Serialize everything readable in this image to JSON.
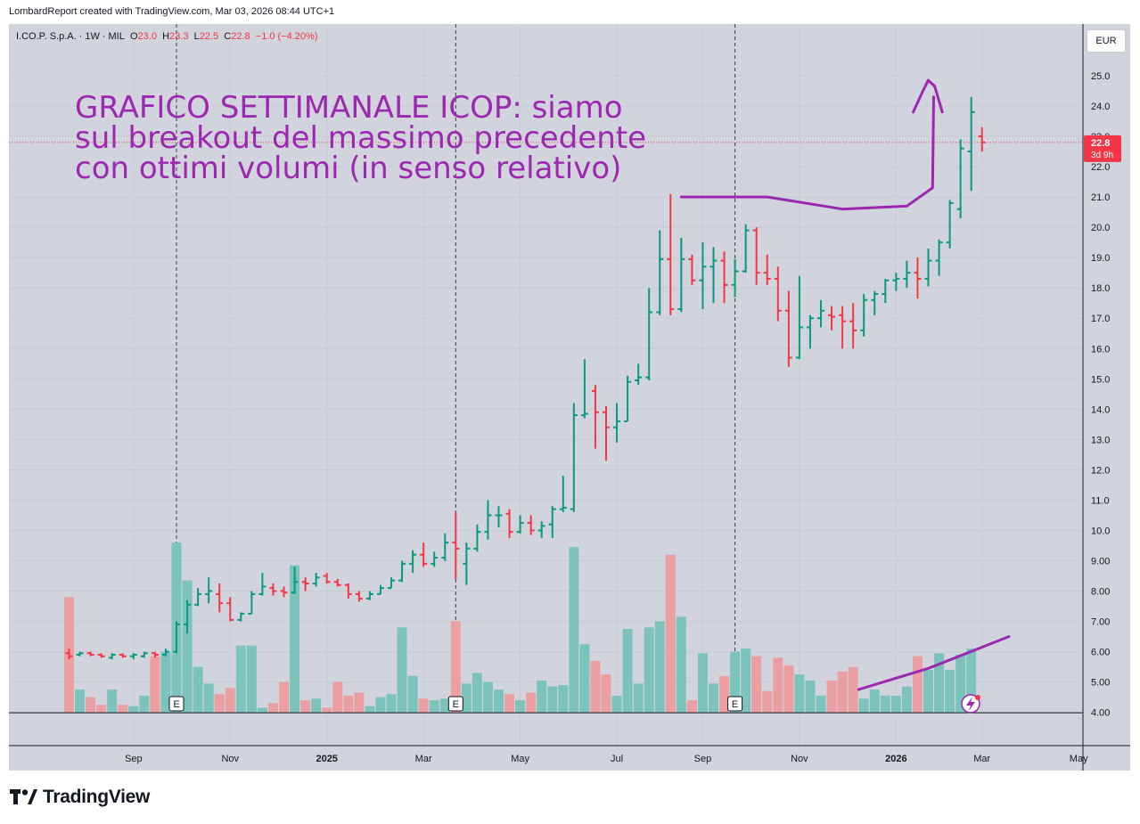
{
  "header": {
    "credit": "LombardReport created with TradingView.com, Mar 03, 2026 08:44 UTC+1"
  },
  "legend": {
    "name": "I.CO.P. S.p.A.",
    "interval": "1W",
    "exchange": "MIL",
    "o_label": "O",
    "o_value": "23.0",
    "h_label": "H",
    "h_value": "23.3",
    "l_label": "L",
    "l_value": "22.5",
    "c_label": "C",
    "c_value": "22.8",
    "change": "−1.0 (−4.20%)"
  },
  "currency": "EUR",
  "annotation": {
    "lines": [
      "GRAFICO SETTIMANALE ICOP: siamo",
      "sul breakout del massimo precedente",
      "con ottimi volumi (in senso relativo)"
    ],
    "color": "#9c27b0"
  },
  "price_label": {
    "value": "22.8",
    "countdown": "3d 9h"
  },
  "earnings_marker": "E",
  "brand": "TradingView",
  "colors": {
    "up": "#089981",
    "down": "#f23645",
    "vol_up": "#7cc3bb",
    "vol_down": "#ec9fa2",
    "pane": "#d1d4dc",
    "drawing": "#9c27b0"
  },
  "chart_data": {
    "type": "ohlc",
    "title": "I.CO.P. S.p.A. · 1W · MIL",
    "ylim": [
      4.0,
      25.4
    ],
    "y_ticks": [
      "25.0",
      "24.0",
      "23.0",
      "22.0",
      "21.0",
      "20.0",
      "19.0",
      "18.0",
      "17.0",
      "16.0",
      "15.0",
      "14.0",
      "13.0",
      "12.0",
      "11.0",
      "10.0",
      "9.00",
      "8.00",
      "7.00",
      "6.00",
      "5.00",
      "4.00"
    ],
    "x_ticks": [
      {
        "label": "Sep",
        "index": 6
      },
      {
        "label": "Nov",
        "index": 15
      },
      {
        "label": "2025",
        "index": 24
      },
      {
        "label": "Mar",
        "index": 33
      },
      {
        "label": "May",
        "index": 42
      },
      {
        "label": "Jul",
        "index": 51
      },
      {
        "label": "Sep",
        "index": 59
      },
      {
        "label": "Nov",
        "index": 68
      },
      {
        "label": "2026",
        "index": 77
      },
      {
        "label": "Mar",
        "index": 85
      },
      {
        "label": "May",
        "index": 94
      }
    ],
    "earnings_weeks": [
      10,
      36,
      62
    ],
    "last_close": 22.8,
    "annotation_lines": [
      {
        "name": "resistance-line",
        "points": [
          [
            57,
            21.0
          ],
          [
            65,
            21.0
          ],
          [
            72,
            20.6
          ],
          [
            78,
            20.7
          ],
          [
            80.4,
            21.3
          ],
          [
            80.5,
            24.3
          ]
        ]
      },
      {
        "name": "breakout-arrow",
        "points": [
          [
            78.6,
            23.8
          ],
          [
            79.5,
            24.5
          ],
          [
            80.0,
            24.85
          ],
          [
            80.6,
            24.65
          ],
          [
            81.3,
            23.8
          ]
        ]
      },
      {
        "name": "volume-trend-line",
        "points": [
          [
            73.5,
            4.75
          ],
          [
            80,
            5.45
          ],
          [
            87.5,
            6.5
          ]
        ]
      }
    ],
    "bars": [
      {
        "o": 5.95,
        "h": 6.1,
        "l": 5.75,
        "c": 5.85,
        "v": 7.8
      },
      {
        "o": 5.9,
        "h": 6.0,
        "l": 5.85,
        "c": 5.95,
        "v": 4.75
      },
      {
        "o": 5.95,
        "h": 6.0,
        "l": 5.85,
        "c": 5.9,
        "v": 4.5
      },
      {
        "o": 5.9,
        "h": 5.95,
        "l": 5.8,
        "c": 5.85,
        "v": 4.25
      },
      {
        "o": 5.8,
        "h": 5.95,
        "l": 5.75,
        "c": 5.9,
        "v": 4.75
      },
      {
        "o": 5.9,
        "h": 5.95,
        "l": 5.8,
        "c": 5.85,
        "v": 4.25
      },
      {
        "o": 5.85,
        "h": 5.95,
        "l": 5.75,
        "c": 5.9,
        "v": 4.2
      },
      {
        "o": 5.85,
        "h": 6.0,
        "l": 5.8,
        "c": 5.95,
        "v": 4.55
      },
      {
        "o": 5.95,
        "h": 6.0,
        "l": 5.8,
        "c": 5.9,
        "v": 5.85
      },
      {
        "o": 5.9,
        "h": 6.1,
        "l": 5.85,
        "c": 6.0,
        "v": 6.0
      },
      {
        "o": 6.0,
        "h": 7.0,
        "l": 5.95,
        "c": 6.9,
        "v": 9.6
      },
      {
        "o": 6.9,
        "h": 7.7,
        "l": 6.6,
        "c": 7.55,
        "v": 8.35
      },
      {
        "o": 7.55,
        "h": 8.1,
        "l": 7.5,
        "c": 7.9,
        "v": 5.5
      },
      {
        "o": 7.9,
        "h": 8.45,
        "l": 7.6,
        "c": 8.0,
        "v": 4.95
      },
      {
        "o": 7.9,
        "h": 8.25,
        "l": 7.3,
        "c": 7.6,
        "v": 4.6
      },
      {
        "o": 7.6,
        "h": 7.8,
        "l": 7.0,
        "c": 7.05,
        "v": 4.8
      },
      {
        "o": 7.05,
        "h": 7.3,
        "l": 7.0,
        "c": 7.25,
        "v": 6.2
      },
      {
        "o": 7.25,
        "h": 8.0,
        "l": 7.25,
        "c": 7.9,
        "v": 6.2
      },
      {
        "o": 7.9,
        "h": 8.6,
        "l": 7.85,
        "c": 8.15,
        "v": 4.15
      },
      {
        "o": 8.1,
        "h": 8.25,
        "l": 7.85,
        "c": 8.0,
        "v": 4.3
      },
      {
        "o": 8.0,
        "h": 8.15,
        "l": 7.8,
        "c": 7.95,
        "v": 5.0
      },
      {
        "o": 7.95,
        "h": 8.8,
        "l": 7.9,
        "c": 8.3,
        "v": 8.85
      },
      {
        "o": 8.3,
        "h": 8.45,
        "l": 8.0,
        "c": 8.25,
        "v": 4.4
      },
      {
        "o": 8.25,
        "h": 8.6,
        "l": 8.15,
        "c": 8.45,
        "v": 4.45
      },
      {
        "o": 8.5,
        "h": 8.6,
        "l": 8.25,
        "c": 8.3,
        "v": 4.15
      },
      {
        "o": 8.3,
        "h": 8.4,
        "l": 8.15,
        "c": 8.2,
        "v": 5.0
      },
      {
        "o": 8.2,
        "h": 8.25,
        "l": 7.75,
        "c": 7.9,
        "v": 4.55
      },
      {
        "o": 7.9,
        "h": 8.0,
        "l": 7.65,
        "c": 7.75,
        "v": 4.65
      },
      {
        "o": 7.75,
        "h": 8.0,
        "l": 7.7,
        "c": 7.9,
        "v": 4.2
      },
      {
        "o": 7.9,
        "h": 8.2,
        "l": 7.9,
        "c": 8.1,
        "v": 4.5
      },
      {
        "o": 8.1,
        "h": 8.45,
        "l": 8.1,
        "c": 8.35,
        "v": 4.6
      },
      {
        "o": 8.35,
        "h": 9.0,
        "l": 8.3,
        "c": 8.9,
        "v": 6.8
      },
      {
        "o": 8.9,
        "h": 9.35,
        "l": 8.6,
        "c": 9.2,
        "v": 5.2
      },
      {
        "o": 9.2,
        "h": 9.6,
        "l": 8.8,
        "c": 8.9,
        "v": 4.45
      },
      {
        "o": 8.9,
        "h": 9.3,
        "l": 8.8,
        "c": 9.1,
        "v": 4.4
      },
      {
        "o": 9.1,
        "h": 9.9,
        "l": 9.0,
        "c": 9.6,
        "v": 4.45
      },
      {
        "o": 9.6,
        "h": 10.6,
        "l": 8.4,
        "c": 9.4,
        "v": 7.0
      },
      {
        "o": 8.9,
        "h": 9.6,
        "l": 8.2,
        "c": 9.4,
        "v": 4.95
      },
      {
        "o": 9.4,
        "h": 10.2,
        "l": 9.3,
        "c": 9.95,
        "v": 5.3
      },
      {
        "o": 9.95,
        "h": 11.0,
        "l": 9.7,
        "c": 10.5,
        "v": 5.0
      },
      {
        "o": 10.5,
        "h": 10.8,
        "l": 10.1,
        "c": 10.5,
        "v": 4.75
      },
      {
        "o": 10.55,
        "h": 10.7,
        "l": 9.75,
        "c": 9.95,
        "v": 4.6
      },
      {
        "o": 9.95,
        "h": 10.5,
        "l": 9.9,
        "c": 10.25,
        "v": 4.4
      },
      {
        "o": 10.25,
        "h": 10.5,
        "l": 9.85,
        "c": 10.0,
        "v": 4.65
      },
      {
        "o": 10.0,
        "h": 10.3,
        "l": 9.75,
        "c": 10.15,
        "v": 5.05
      },
      {
        "o": 10.2,
        "h": 10.8,
        "l": 9.75,
        "c": 10.7,
        "v": 4.85
      },
      {
        "o": 10.7,
        "h": 11.8,
        "l": 10.6,
        "c": 10.75,
        "v": 4.9
      },
      {
        "o": 10.7,
        "h": 14.2,
        "l": 10.6,
        "c": 13.8,
        "v": 9.45
      },
      {
        "o": 13.8,
        "h": 15.65,
        "l": 13.7,
        "c": 13.85,
        "v": 6.25
      },
      {
        "o": 14.6,
        "h": 14.8,
        "l": 12.7,
        "c": 13.9,
        "v": 5.7
      },
      {
        "o": 13.9,
        "h": 14.1,
        "l": 12.3,
        "c": 13.4,
        "v": 5.25
      },
      {
        "o": 13.4,
        "h": 14.2,
        "l": 12.9,
        "c": 13.6,
        "v": 4.55
      },
      {
        "o": 13.6,
        "h": 15.1,
        "l": 13.6,
        "c": 14.9,
        "v": 6.75
      },
      {
        "o": 14.95,
        "h": 15.5,
        "l": 14.8,
        "c": 15.05,
        "v": 4.95
      },
      {
        "o": 15.05,
        "h": 18.0,
        "l": 14.95,
        "c": 17.2,
        "v": 6.8
      },
      {
        "o": 17.2,
        "h": 19.9,
        "l": 17.1,
        "c": 18.95,
        "v": 7.0
      },
      {
        "o": 18.95,
        "h": 21.1,
        "l": 17.1,
        "c": 17.3,
        "v": 9.2
      },
      {
        "o": 17.3,
        "h": 19.65,
        "l": 17.2,
        "c": 18.95,
        "v": 7.15
      },
      {
        "o": 18.95,
        "h": 19.1,
        "l": 18.1,
        "c": 18.25,
        "v": 4.4
      },
      {
        "o": 18.25,
        "h": 19.5,
        "l": 17.3,
        "c": 18.7,
        "v": 5.95
      },
      {
        "o": 18.7,
        "h": 19.35,
        "l": 17.5,
        "c": 18.9,
        "v": 4.95
      },
      {
        "o": 18.9,
        "h": 19.2,
        "l": 17.5,
        "c": 18.1,
        "v": 5.2
      },
      {
        "o": 18.1,
        "h": 18.95,
        "l": 17.7,
        "c": 18.55,
        "v": 6.0
      },
      {
        "o": 18.55,
        "h": 20.1,
        "l": 18.5,
        "c": 19.9,
        "v": 6.1
      },
      {
        "o": 19.9,
        "h": 20.0,
        "l": 18.1,
        "c": 18.5,
        "v": 5.85
      },
      {
        "o": 18.5,
        "h": 19.1,
        "l": 18.1,
        "c": 18.3,
        "v": 4.7
      },
      {
        "o": 18.3,
        "h": 18.7,
        "l": 16.9,
        "c": 17.25,
        "v": 5.8
      },
      {
        "o": 17.25,
        "h": 17.9,
        "l": 15.4,
        "c": 15.7,
        "v": 5.55
      },
      {
        "o": 15.7,
        "h": 18.4,
        "l": 15.65,
        "c": 16.7,
        "v": 5.25
      },
      {
        "o": 16.7,
        "h": 17.1,
        "l": 16.0,
        "c": 17.0,
        "v": 5.05
      },
      {
        "o": 17.0,
        "h": 17.6,
        "l": 16.7,
        "c": 17.25,
        "v": 4.55
      },
      {
        "o": 17.1,
        "h": 17.4,
        "l": 16.6,
        "c": 17.05,
        "v": 5.05
      },
      {
        "o": 17.1,
        "h": 17.4,
        "l": 16.0,
        "c": 16.9,
        "v": 5.35
      },
      {
        "o": 16.9,
        "h": 17.5,
        "l": 16.0,
        "c": 16.6,
        "v": 5.5
      },
      {
        "o": 16.6,
        "h": 17.8,
        "l": 16.4,
        "c": 17.6,
        "v": 4.45
      },
      {
        "o": 17.6,
        "h": 17.9,
        "l": 17.1,
        "c": 17.8,
        "v": 4.75
      },
      {
        "o": 17.8,
        "h": 18.3,
        "l": 17.5,
        "c": 18.25,
        "v": 4.55
      },
      {
        "o": 18.25,
        "h": 18.5,
        "l": 17.9,
        "c": 18.3,
        "v": 4.55
      },
      {
        "o": 18.3,
        "h": 18.9,
        "l": 18.0,
        "c": 18.5,
        "v": 4.85
      },
      {
        "o": 18.5,
        "h": 19.0,
        "l": 17.65,
        "c": 18.3,
        "v": 5.85
      },
      {
        "o": 18.3,
        "h": 19.3,
        "l": 18.05,
        "c": 18.9,
        "v": 5.4
      },
      {
        "o": 18.9,
        "h": 19.6,
        "l": 18.4,
        "c": 19.5,
        "v": 5.95
      },
      {
        "o": 19.5,
        "h": 20.9,
        "l": 19.3,
        "c": 20.8,
        "v": 5.4
      },
      {
        "o": 20.6,
        "h": 22.9,
        "l": 20.3,
        "c": 22.6,
        "v": 5.9
      },
      {
        "o": 22.5,
        "h": 24.3,
        "l": 21.2,
        "c": 23.8,
        "v": 6.1
      },
      {
        "o": 23.0,
        "h": 23.3,
        "l": 22.5,
        "c": 22.8,
        "v": null
      }
    ]
  }
}
